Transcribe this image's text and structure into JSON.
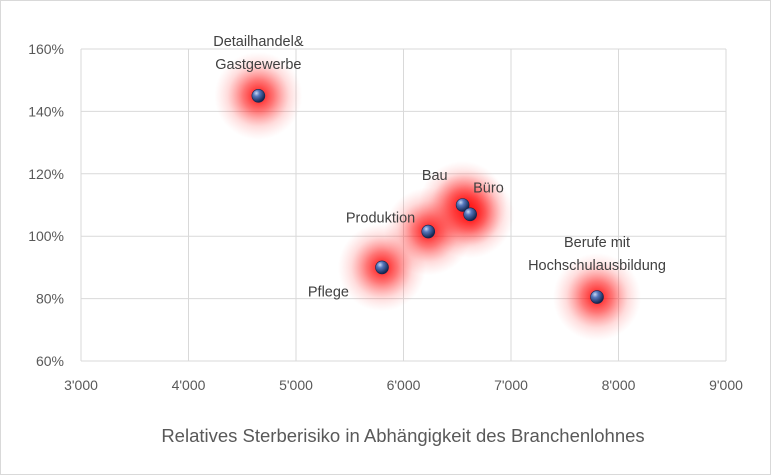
{
  "chart_data": {
    "type": "scatter",
    "title": "",
    "xlabel": "Relatives Sterberisiko in Abhängigkeit des Branchenlohnes",
    "ylabel": "",
    "xlim": [
      3000,
      9000
    ],
    "ylim": [
      60,
      160
    ],
    "x_ticks": [
      {
        "value": 3000,
        "label": "3'000"
      },
      {
        "value": 4000,
        "label": "4'000"
      },
      {
        "value": 5000,
        "label": "5'000"
      },
      {
        "value": 6000,
        "label": "6'000"
      },
      {
        "value": 7000,
        "label": "7'000"
      },
      {
        "value": 8000,
        "label": "8'000"
      },
      {
        "value": 9000,
        "label": "9'000"
      }
    ],
    "y_ticks": [
      {
        "value": 60,
        "label": "60%"
      },
      {
        "value": 80,
        "label": "80%"
      },
      {
        "value": 100,
        "label": "100%"
      },
      {
        "value": 120,
        "label": "120%"
      },
      {
        "value": 140,
        "label": "140%"
      },
      {
        "value": 160,
        "label": "160%"
      }
    ],
    "grid": true,
    "points": [
      {
        "label": [
          "Detailhandel&",
          "Gastgewerbe"
        ],
        "x": 4650,
        "y": 145,
        "label_pos": "above"
      },
      {
        "label": [
          "Bau"
        ],
        "x": 6550,
        "y": 110,
        "label_pos": "above-left"
      },
      {
        "label": [
          "Büro"
        ],
        "x": 6620,
        "y": 107,
        "label_pos": "above-right"
      },
      {
        "label": [
          "Produktion"
        ],
        "x": 6230,
        "y": 101.5,
        "label_pos": "left"
      },
      {
        "label": [
          "Pflege"
        ],
        "x": 5800,
        "y": 90,
        "label_pos": "below-left"
      },
      {
        "label": [
          "Berufe mit",
          "Hochschulausbildung"
        ],
        "x": 7800,
        "y": 80.5,
        "label_pos": "above"
      }
    ],
    "colors": {
      "grid": "#d9d9d9",
      "marker_light": "#8aa6d6",
      "marker_mid": "#3f62a6",
      "marker_dark": "#13254d",
      "glow": "#ff0000"
    }
  }
}
